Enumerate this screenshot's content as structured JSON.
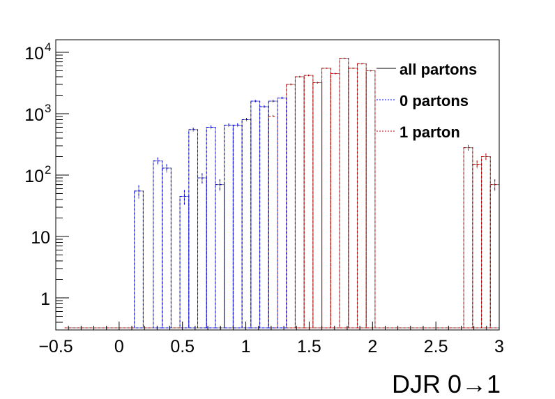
{
  "chart_data": {
    "type": "histogram",
    "title": "",
    "xlabel": "DJR 0→1",
    "ylabel": "",
    "xlim": [
      -0.5,
      3.0
    ],
    "ylim": [
      0.3,
      16000
    ],
    "yscale": "log",
    "grid": false,
    "legend_position": "top-right",
    "x_ticks": [
      "−0.5",
      "0",
      "0.5",
      "1",
      "1.5",
      "2",
      "2.5",
      "3"
    ],
    "x_tick_values": [
      -0.5,
      0,
      0.5,
      1,
      1.5,
      2,
      2.5,
      3
    ],
    "y_ticks": [
      {
        "value": 1,
        "base": "1",
        "exp": ""
      },
      {
        "value": 10,
        "base": "10",
        "exp": ""
      },
      {
        "value": 100,
        "base": "10",
        "exp": "2"
      },
      {
        "value": 1000,
        "base": "10",
        "exp": "3"
      },
      {
        "value": 10000,
        "base": "10",
        "exp": "4"
      }
    ],
    "bin_width": 0.07,
    "series": [
      {
        "name": "all partons",
        "color": "#808080",
        "style": "solid",
        "bins": [
          {
            "x": 0.12,
            "y": 55
          },
          {
            "x": 0.27,
            "y": 170
          },
          {
            "x": 0.34,
            "y": 130
          },
          {
            "x": 0.48,
            "y": 45
          },
          {
            "x": 0.55,
            "y": 550
          },
          {
            "x": 0.62,
            "y": 90
          },
          {
            "x": 0.69,
            "y": 600
          },
          {
            "x": 0.76,
            "y": 70
          },
          {
            "x": 0.83,
            "y": 650
          },
          {
            "x": 0.9,
            "y": 650
          },
          {
            "x": 0.97,
            "y": 800
          },
          {
            "x": 1.04,
            "y": 1600
          },
          {
            "x": 1.11,
            "y": 1300
          },
          {
            "x": 1.18,
            "y": 1600
          },
          {
            "x": 1.25,
            "y": 1800
          },
          {
            "x": 1.32,
            "y": 3000
          },
          {
            "x": 1.39,
            "y": 4000
          },
          {
            "x": 1.46,
            "y": 4200
          },
          {
            "x": 1.53,
            "y": 3200
          },
          {
            "x": 1.6,
            "y": 5500
          },
          {
            "x": 1.67,
            "y": 4500
          },
          {
            "x": 1.74,
            "y": 8000
          },
          {
            "x": 1.81,
            "y": 5500
          },
          {
            "x": 1.88,
            "y": 6500
          },
          {
            "x": 1.95,
            "y": 5000
          },
          {
            "x": 2.72,
            "y": 280
          },
          {
            "x": 2.79,
            "y": 150
          },
          {
            "x": 2.86,
            "y": 200
          },
          {
            "x": 2.93,
            "y": 70
          }
        ]
      },
      {
        "name": "0 partons",
        "color": "#0000ff",
        "style": "dashed",
        "bins": [
          {
            "x": 0.12,
            "y": 55
          },
          {
            "x": 0.27,
            "y": 170
          },
          {
            "x": 0.34,
            "y": 130
          },
          {
            "x": 0.48,
            "y": 45
          },
          {
            "x": 0.55,
            "y": 550
          },
          {
            "x": 0.62,
            "y": 90
          },
          {
            "x": 0.69,
            "y": 600
          },
          {
            "x": 0.76,
            "y": 70
          },
          {
            "x": 0.83,
            "y": 650
          },
          {
            "x": 0.9,
            "y": 650
          },
          {
            "x": 0.97,
            "y": 800
          },
          {
            "x": 1.04,
            "y": 1600
          },
          {
            "x": 1.11,
            "y": 1300
          },
          {
            "x": 1.18,
            "y": 1600
          },
          {
            "x": 1.25,
            "y": 1800
          }
        ]
      },
      {
        "name": "1 parton",
        "color": "#cc0000",
        "style": "dashed",
        "bins": [
          {
            "x": 1.18,
            "y": 900
          },
          {
            "x": 1.25,
            "y": 1800
          },
          {
            "x": 1.32,
            "y": 3000
          },
          {
            "x": 1.39,
            "y": 4000
          },
          {
            "x": 1.46,
            "y": 4200
          },
          {
            "x": 1.53,
            "y": 3200
          },
          {
            "x": 1.6,
            "y": 5500
          },
          {
            "x": 1.67,
            "y": 4500
          },
          {
            "x": 1.74,
            "y": 8000
          },
          {
            "x": 1.81,
            "y": 5500
          },
          {
            "x": 1.88,
            "y": 6500
          },
          {
            "x": 1.95,
            "y": 5000
          },
          {
            "x": 2.72,
            "y": 280
          },
          {
            "x": 2.79,
            "y": 150
          },
          {
            "x": 2.86,
            "y": 200
          },
          {
            "x": 2.93,
            "y": 70
          }
        ]
      }
    ]
  }
}
